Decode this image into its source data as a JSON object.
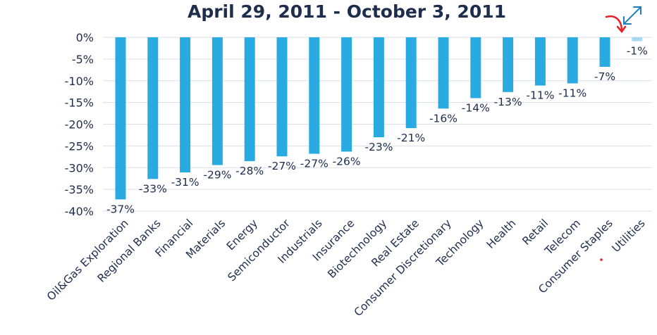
{
  "chart_data": {
    "type": "bar",
    "title": "April 29, 2011 - October 3, 2011",
    "xlabel": "",
    "ylabel": "",
    "ylim": [
      -40,
      0
    ],
    "yticks": [
      0,
      -5,
      -10,
      -15,
      -20,
      -25,
      -30,
      -35,
      -40
    ],
    "ytick_labels": [
      "0%",
      "-5%",
      "-10%",
      "-15%",
      "-20%",
      "-25%",
      "-30%",
      "-35%",
      "-40%"
    ],
    "grid": true,
    "legend": "none",
    "categories": [
      "Oil&Gas Exploration",
      "Regional Banks",
      "Financial",
      "Materials",
      "Energy",
      "Semiconductor",
      "Industrials",
      "Insurance",
      "Biotechnology",
      "Real Estate",
      "Consumer Discretionary",
      "Technology",
      "Health",
      "Retail",
      "Telecom",
      "Consumer Staples",
      "Utilities"
    ],
    "values": [
      -37.3,
      -32.6,
      -31.1,
      -29.4,
      -28.5,
      -27.4,
      -26.8,
      -26.3,
      -23.0,
      -20.9,
      -16.4,
      -14.0,
      -12.6,
      -11.1,
      -10.6,
      -6.8,
      -0.9
    ],
    "data_labels": [
      "-37%",
      "-33%",
      "-31%",
      "-29%",
      "-28%",
      "-27%",
      "-27%",
      "-26%",
      "-23%",
      "-21%",
      "-16%",
      "-14%",
      "-13%",
      "-11%",
      "-11%",
      "-7%",
      "-1%"
    ],
    "colors": {
      "bar": "#29abe2",
      "bar_highlight": "#a8d8f0",
      "text": "#1f2d4d",
      "grid": "#dcdfe4",
      "annotation": "#e8202a",
      "expand_icon": "#1e7fc2"
    },
    "highlighted_category": "Utilities",
    "overlays": {
      "expand_icon": "expand-arrows-icon",
      "annotation": "red-curved-arrow-icon"
    }
  }
}
